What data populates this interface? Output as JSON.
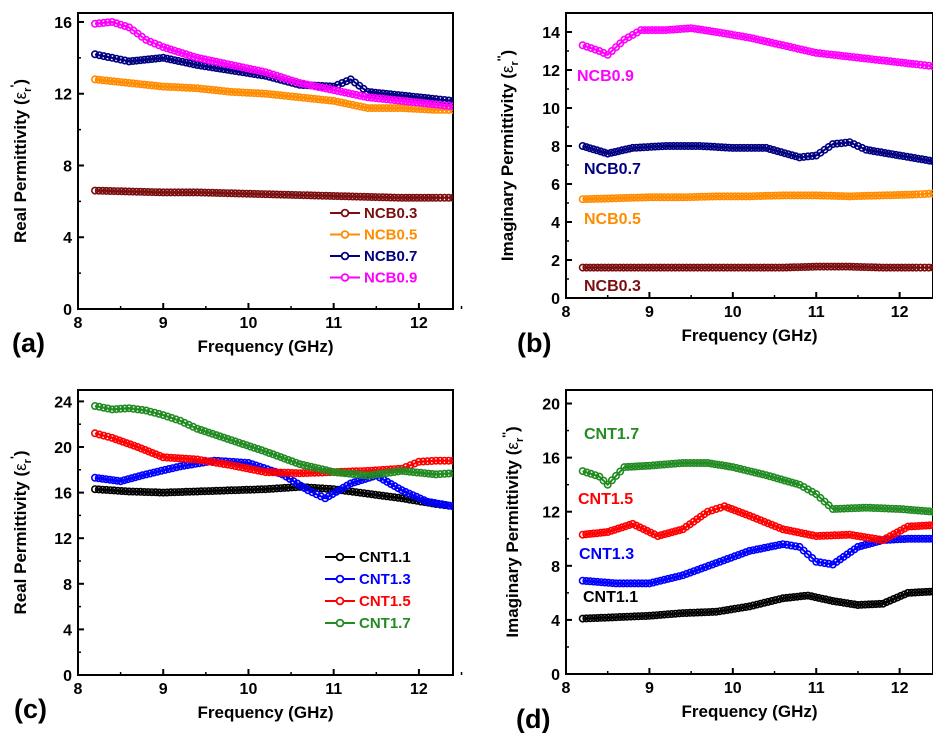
{
  "chart_data": [
    {
      "type": "scatter",
      "panel": "(a)",
      "xlabel": "Frequency (GHz)",
      "ylabel": "Real Permittivity (ε_r')",
      "ylabel_main": "Real Permittivity (",
      "ylabel_sym": "ε",
      "ylabel_sub": "r",
      "ylabel_sup": "'",
      "ylabel_close": ")",
      "xlim": [
        8,
        12.4
      ],
      "ylim": [
        0,
        16.5
      ],
      "xticks": [
        "8",
        "9",
        "10",
        "11",
        "12"
      ],
      "yticks": [
        "0",
        "4",
        "8",
        "12",
        "16"
      ],
      "legend": "bottom-right",
      "series": [
        {
          "name": "NCB0.3",
          "color": "#7b0f0f",
          "x": [
            8.2,
            8.6,
            9.0,
            9.4,
            9.8,
            10.2,
            10.6,
            11.0,
            11.4,
            11.8,
            12.2,
            12.4
          ],
          "values": [
            6.6,
            6.55,
            6.5,
            6.5,
            6.45,
            6.4,
            6.35,
            6.3,
            6.25,
            6.2,
            6.2,
            6.2
          ]
        },
        {
          "name": "NCB0.5",
          "color": "#ff8c00",
          "x": [
            8.2,
            8.6,
            9.0,
            9.4,
            9.8,
            10.2,
            10.6,
            11.0,
            11.4,
            11.8,
            12.2,
            12.4
          ],
          "values": [
            12.8,
            12.6,
            12.4,
            12.3,
            12.1,
            12.0,
            11.8,
            11.6,
            11.2,
            11.2,
            11.1,
            11.1
          ]
        },
        {
          "name": "NCB0.7",
          "color": "#000080",
          "x": [
            8.2,
            8.4,
            8.6,
            9.0,
            9.4,
            9.8,
            10.2,
            10.6,
            11.0,
            11.2,
            11.4,
            11.8,
            12.2,
            12.4
          ],
          "values": [
            14.2,
            14.0,
            13.8,
            14.0,
            13.6,
            13.3,
            13.0,
            12.5,
            12.4,
            12.8,
            12.1,
            11.9,
            11.7,
            11.6
          ]
        },
        {
          "name": "NCB0.9",
          "color": "#ff00ff",
          "x": [
            8.2,
            8.4,
            8.6,
            8.8,
            9.0,
            9.4,
            9.8,
            10.2,
            10.6,
            11.0,
            11.4,
            11.8,
            12.2,
            12.4
          ],
          "values": [
            15.9,
            16.0,
            15.7,
            15.0,
            14.6,
            14.0,
            13.6,
            13.2,
            12.6,
            12.2,
            11.8,
            11.6,
            11.4,
            11.3
          ]
        }
      ]
    },
    {
      "type": "scatter",
      "panel": "(b)",
      "xlabel": "Frequency (GHz)",
      "ylabel": "Imaginary Permittivity (ε_r'')",
      "ylabel_main": "Imaginary Permittivity (",
      "ylabel_sym": "ε",
      "ylabel_sub": "r",
      "ylabel_sup": "''",
      "ylabel_close": ")",
      "xlim": [
        8,
        12.4
      ],
      "ylim": [
        0,
        15
      ],
      "xticks": [
        "8",
        "9",
        "10",
        "11",
        "12"
      ],
      "yticks": [
        "0",
        "2",
        "4",
        "6",
        "8",
        "10",
        "12",
        "14"
      ],
      "series": [
        {
          "name": "NCB0.3",
          "color": "#7b0f0f",
          "x": [
            8.2,
            8.6,
            9.0,
            9.4,
            9.8,
            10.2,
            10.6,
            11.0,
            11.4,
            11.8,
            12.2,
            12.4
          ],
          "values": [
            1.6,
            1.6,
            1.6,
            1.6,
            1.6,
            1.6,
            1.6,
            1.65,
            1.65,
            1.6,
            1.6,
            1.6
          ]
        },
        {
          "name": "NCB0.5",
          "color": "#ff8c00",
          "x": [
            8.2,
            8.6,
            9.0,
            9.4,
            9.8,
            10.2,
            10.6,
            11.0,
            11.4,
            11.8,
            12.2,
            12.4
          ],
          "values": [
            5.2,
            5.25,
            5.3,
            5.3,
            5.35,
            5.35,
            5.4,
            5.4,
            5.35,
            5.4,
            5.45,
            5.5
          ]
        },
        {
          "name": "NCB0.7",
          "color": "#000080",
          "x": [
            8.2,
            8.5,
            8.8,
            9.2,
            9.6,
            10.0,
            10.4,
            10.8,
            11.0,
            11.2,
            11.4,
            11.6,
            12.0,
            12.4
          ],
          "values": [
            8.0,
            7.6,
            7.9,
            8.0,
            8.0,
            7.9,
            7.9,
            7.4,
            7.5,
            8.1,
            8.2,
            7.8,
            7.5,
            7.2
          ]
        },
        {
          "name": "NCB0.9",
          "color": "#ff00ff",
          "x": [
            8.2,
            8.4,
            8.5,
            8.7,
            8.9,
            9.2,
            9.5,
            9.8,
            10.2,
            10.6,
            11.0,
            11.4,
            11.8,
            12.2,
            12.4
          ],
          "values": [
            13.3,
            13.0,
            12.8,
            13.6,
            14.1,
            14.1,
            14.2,
            14.0,
            13.7,
            13.3,
            12.9,
            12.7,
            12.5,
            12.3,
            12.2
          ]
        }
      ]
    },
    {
      "type": "scatter",
      "panel": "(c)",
      "xlabel": "Frequency (GHz)",
      "ylabel": "Real Permittivity (ε_r')",
      "ylabel_main": "Real Permittivity (",
      "ylabel_sym": "ε",
      "ylabel_sub": "r",
      "ylabel_sup": "'",
      "ylabel_close": ")",
      "xlim": [
        8,
        12.4
      ],
      "ylim": [
        0,
        25
      ],
      "xticks": [
        "8",
        "9",
        "10",
        "11",
        "12"
      ],
      "yticks": [
        "0",
        "4",
        "8",
        "12",
        "16",
        "20",
        "24"
      ],
      "legend": "bottom-right",
      "series": [
        {
          "name": "CNT1.1",
          "color": "#000000",
          "x": [
            8.2,
            8.6,
            9.0,
            9.4,
            9.8,
            10.2,
            10.6,
            11.0,
            11.4,
            11.8,
            12.2,
            12.4
          ],
          "values": [
            16.3,
            16.1,
            16.0,
            16.1,
            16.2,
            16.3,
            16.5,
            16.3,
            15.9,
            15.5,
            15.0,
            14.8
          ]
        },
        {
          "name": "CNT1.3",
          "color": "#0000ff",
          "x": [
            8.2,
            8.5,
            8.8,
            9.2,
            9.6,
            10.0,
            10.4,
            10.7,
            10.9,
            11.2,
            11.5,
            11.8,
            12.1,
            12.4
          ],
          "values": [
            17.3,
            17.0,
            17.6,
            18.3,
            18.8,
            18.6,
            17.6,
            16.2,
            15.5,
            16.8,
            17.5,
            16.2,
            15.2,
            14.8
          ]
        },
        {
          "name": "CNT1.5",
          "color": "#ff0000",
          "x": [
            8.2,
            8.4,
            8.7,
            9.0,
            9.4,
            9.8,
            10.2,
            10.6,
            11.0,
            11.4,
            11.8,
            12.0,
            12.2,
            12.4
          ],
          "values": [
            21.2,
            20.8,
            20.0,
            19.1,
            18.9,
            18.4,
            17.8,
            17.7,
            17.8,
            17.9,
            18.1,
            18.7,
            18.8,
            18.8
          ]
        },
        {
          "name": "CNT1.7",
          "color": "#228b22",
          "x": [
            8.2,
            8.4,
            8.6,
            8.8,
            9.0,
            9.2,
            9.4,
            9.8,
            10.2,
            10.6,
            11.0,
            11.4,
            11.8,
            12.2,
            12.4
          ],
          "values": [
            23.6,
            23.3,
            23.4,
            23.2,
            22.8,
            22.3,
            21.6,
            20.6,
            19.6,
            18.5,
            17.8,
            17.5,
            17.9,
            17.6,
            17.7
          ]
        }
      ]
    },
    {
      "type": "scatter",
      "panel": "(d)",
      "xlabel": "Frequency (GHz)",
      "ylabel": "Imaginary Permittivity (ε_r'')",
      "ylabel_main": "Imaginary Permittivity (",
      "ylabel_sym": "ε",
      "ylabel_sub": "r",
      "ylabel_sup": "''",
      "ylabel_close": ")",
      "xlim": [
        8,
        12.4
      ],
      "ylim": [
        0,
        21
      ],
      "xticks": [
        "8",
        "9",
        "10",
        "11",
        "12"
      ],
      "yticks": [
        "0",
        "4",
        "8",
        "12",
        "16",
        "20"
      ],
      "series": [
        {
          "name": "CNT1.1",
          "color": "#000000",
          "x": [
            8.2,
            8.6,
            9.0,
            9.4,
            9.8,
            10.2,
            10.6,
            10.9,
            11.2,
            11.5,
            11.8,
            12.1,
            12.4
          ],
          "values": [
            4.1,
            4.2,
            4.3,
            4.5,
            4.6,
            5.0,
            5.6,
            5.8,
            5.4,
            5.1,
            5.2,
            6.0,
            6.1
          ]
        },
        {
          "name": "CNT1.3",
          "color": "#0000ff",
          "x": [
            8.2,
            8.6,
            9.0,
            9.4,
            9.8,
            10.2,
            10.6,
            10.8,
            11.0,
            11.2,
            11.5,
            11.8,
            12.1,
            12.4
          ],
          "values": [
            6.9,
            6.7,
            6.7,
            7.3,
            8.2,
            9.1,
            9.6,
            9.4,
            8.3,
            8.1,
            9.4,
            9.9,
            10.0,
            10.0
          ]
        },
        {
          "name": "CNT1.5",
          "color": "#ff0000",
          "x": [
            8.2,
            8.5,
            8.8,
            9.1,
            9.4,
            9.7,
            9.9,
            10.2,
            10.6,
            11.0,
            11.4,
            11.8,
            12.1,
            12.4
          ],
          "values": [
            10.3,
            10.5,
            11.1,
            10.2,
            10.7,
            12.0,
            12.4,
            11.7,
            10.7,
            10.2,
            10.3,
            9.9,
            10.9,
            11.0
          ]
        },
        {
          "name": "CNT1.7",
          "color": "#228b22",
          "x": [
            8.2,
            8.4,
            8.5,
            8.7,
            9.0,
            9.4,
            9.7,
            10.0,
            10.4,
            10.8,
            11.0,
            11.2,
            11.6,
            12.0,
            12.4
          ],
          "values": [
            15.0,
            14.6,
            14.0,
            15.3,
            15.4,
            15.6,
            15.6,
            15.3,
            14.7,
            14.0,
            13.3,
            12.2,
            12.3,
            12.2,
            12.0
          ]
        }
      ]
    }
  ]
}
